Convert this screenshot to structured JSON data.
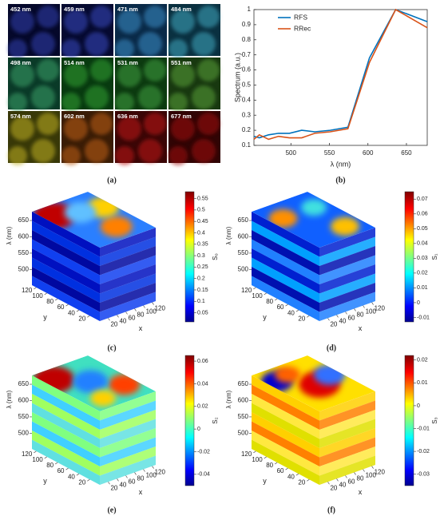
{
  "figure": {
    "panel_a": {
      "caption": "(a)",
      "tiles": [
        "452 nm",
        "459 nm",
        "471 nm",
        "484 nm",
        "498 nm",
        "514 nm",
        "531 nm",
        "551 nm",
        "574 nm",
        "602 nm",
        "636 nm",
        "677 nm"
      ]
    }
  },
  "chart_data": [
    {
      "type": "line",
      "caption": "(b)",
      "xlabel": "λ (nm)",
      "ylabel": "Spectrum (a.u.)",
      "x": [
        452,
        459,
        471,
        484,
        498,
        514,
        531,
        551,
        574,
        602,
        636,
        677
      ],
      "series": [
        {
          "name": "RFS",
          "color": "#0072bd",
          "values": [
            0.16,
            0.15,
            0.17,
            0.18,
            0.18,
            0.2,
            0.19,
            0.2,
            0.22,
            0.68,
            1,
            0.92
          ]
        },
        {
          "name": "RRec",
          "color": "#d95319",
          "values": [
            0.14,
            0.17,
            0.14,
            0.16,
            0.15,
            0.15,
            0.18,
            0.19,
            0.21,
            0.65,
            1,
            0.88
          ]
        }
      ],
      "xlim": [
        452,
        677
      ],
      "xticks": [
        500,
        550,
        600,
        650
      ],
      "ylim": [
        0.1,
        1
      ],
      "yticks": [
        0.1,
        0.2,
        0.3,
        0.4,
        0.5,
        0.6,
        0.7,
        0.8,
        0.9,
        1
      ],
      "legend": "upper left"
    },
    {
      "type": "volume",
      "caption": "(c)",
      "colorbar_label": "S₀",
      "clim": [
        0.01,
        0.58
      ],
      "cticks": [
        0.05,
        0.1,
        0.15,
        0.2,
        0.25,
        0.3,
        0.35,
        0.4,
        0.45,
        0.5,
        0.55
      ],
      "zlabel": "λ (nm)",
      "zlim": [
        452,
        677
      ],
      "zticks": [
        500,
        550,
        600,
        650
      ],
      "ylabel": "y",
      "ylim": [
        1,
        128
      ],
      "yticks": [
        20,
        40,
        60,
        80,
        100,
        120
      ],
      "xlabel": "x",
      "xlim": [
        1,
        128
      ],
      "xticks": [
        20,
        40,
        60,
        80,
        100,
        120
      ]
    },
    {
      "type": "volume",
      "caption": "(d)",
      "colorbar_label": "S₁",
      "clim": [
        -0.013,
        0.075
      ],
      "cticks": [
        -0.01,
        0,
        0.01,
        0.02,
        0.03,
        0.04,
        0.05,
        0.06,
        0.07
      ],
      "zlabel": "λ (nm)",
      "zlim": [
        452,
        677
      ],
      "zticks": [
        500,
        550,
        600,
        650
      ],
      "ylabel": "y",
      "ylim": [
        1,
        128
      ],
      "yticks": [
        20,
        40,
        60,
        80,
        100,
        120
      ],
      "xlabel": "x",
      "xlim": [
        1,
        128
      ],
      "xticks": [
        20,
        40,
        60,
        80,
        100,
        120
      ]
    },
    {
      "type": "volume",
      "caption": "(e)",
      "colorbar_label": "S₂",
      "clim": [
        -0.05,
        0.065
      ],
      "cticks": [
        -0.04,
        -0.02,
        0,
        0.02,
        0.04,
        0.06
      ],
      "zlabel": "λ (nm)",
      "zlim": [
        452,
        677
      ],
      "zticks": [
        500,
        550,
        600,
        650
      ],
      "ylabel": "y",
      "ylim": [
        1,
        128
      ],
      "yticks": [
        20,
        40,
        60,
        80,
        100,
        120
      ],
      "xlabel": "x",
      "xlim": [
        1,
        128
      ],
      "xticks": [
        20,
        40,
        60,
        80,
        100,
        120
      ]
    },
    {
      "type": "volume",
      "caption": "(f)",
      "colorbar_label": "S₃",
      "clim": [
        -0.035,
        0.022
      ],
      "cticks": [
        -0.03,
        -0.02,
        -0.01,
        0,
        0.01,
        0.02
      ],
      "zlabel": "λ (nm)",
      "zlim": [
        452,
        677
      ],
      "zticks": [
        500,
        550,
        600,
        650
      ],
      "ylabel": "y",
      "ylim": [
        1,
        128
      ],
      "yticks": [
        20,
        40,
        60,
        80,
        100,
        120
      ],
      "xlabel": "x",
      "xlim": [
        1,
        128
      ],
      "xticks": [
        20,
        40,
        60,
        80,
        100,
        120
      ]
    }
  ]
}
